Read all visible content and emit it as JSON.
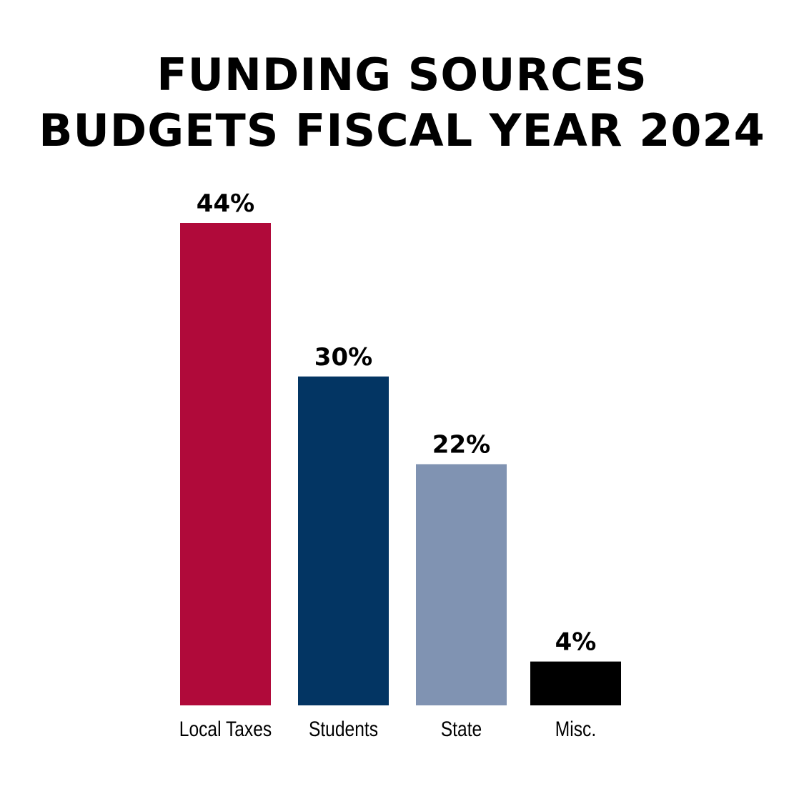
{
  "chart_data": {
    "type": "bar",
    "title": "FUNDING SOURCES",
    "subtitle": "BUDGETS FISCAL YEAR 2024",
    "categories": [
      "Local Taxes",
      "Students",
      "State",
      "Misc."
    ],
    "values": [
      44,
      30,
      22,
      4
    ],
    "value_labels": [
      "44%",
      "30%",
      "22%",
      "4%"
    ],
    "colors": [
      "#b00a3a",
      "#033563",
      "#8093b2",
      "#000000"
    ],
    "ylim": [
      0,
      44
    ],
    "grid": false,
    "legend": "none"
  }
}
